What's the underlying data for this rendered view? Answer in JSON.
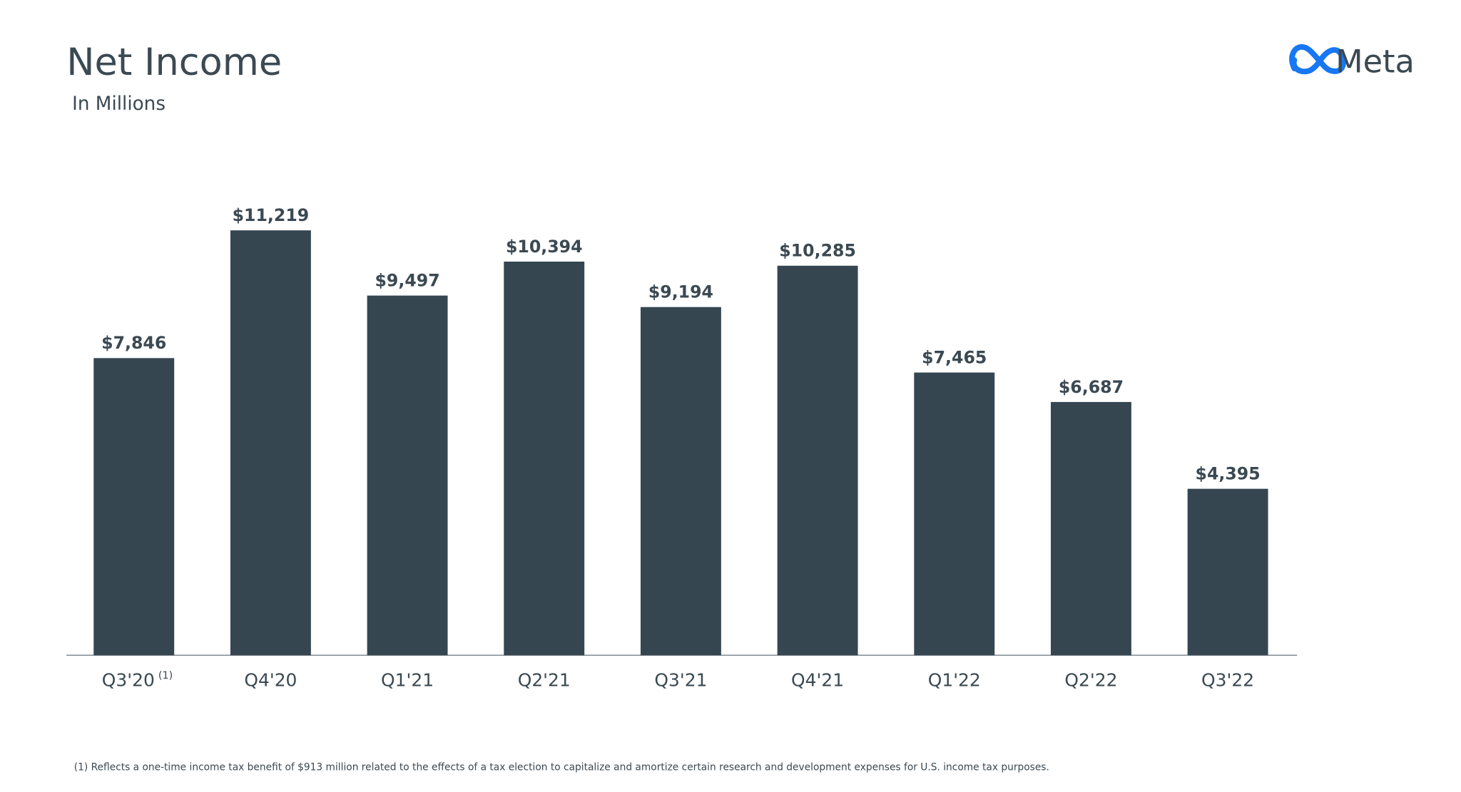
{
  "chart_data": {
    "type": "bar",
    "title": "Net Income",
    "subtitle": "In Millions",
    "logo": "Meta",
    "categories": [
      "Q3'20",
      "Q4'20",
      "Q1'21",
      "Q2'21",
      "Q3'21",
      "Q4'21",
      "Q1'22",
      "Q2'22",
      "Q3'22"
    ],
    "category_note": "(1)",
    "values": [
      7846,
      11219,
      9497,
      10394,
      9194,
      10285,
      7465,
      6687,
      4395
    ],
    "value_labels": [
      "$7,846",
      "$11,219",
      "$9,497",
      "$10,394",
      "$9,194",
      "$10,285",
      "$7,465",
      "$6,687",
      "$4,395"
    ],
    "color": "#354651",
    "ylim": [
      0,
      12000
    ],
    "footnote": "(1) Reflects a one-time income tax benefit of $913 million related to the effects of a tax election to capitalize and amortize certain research and development expenses for U.S. income tax purposes."
  }
}
